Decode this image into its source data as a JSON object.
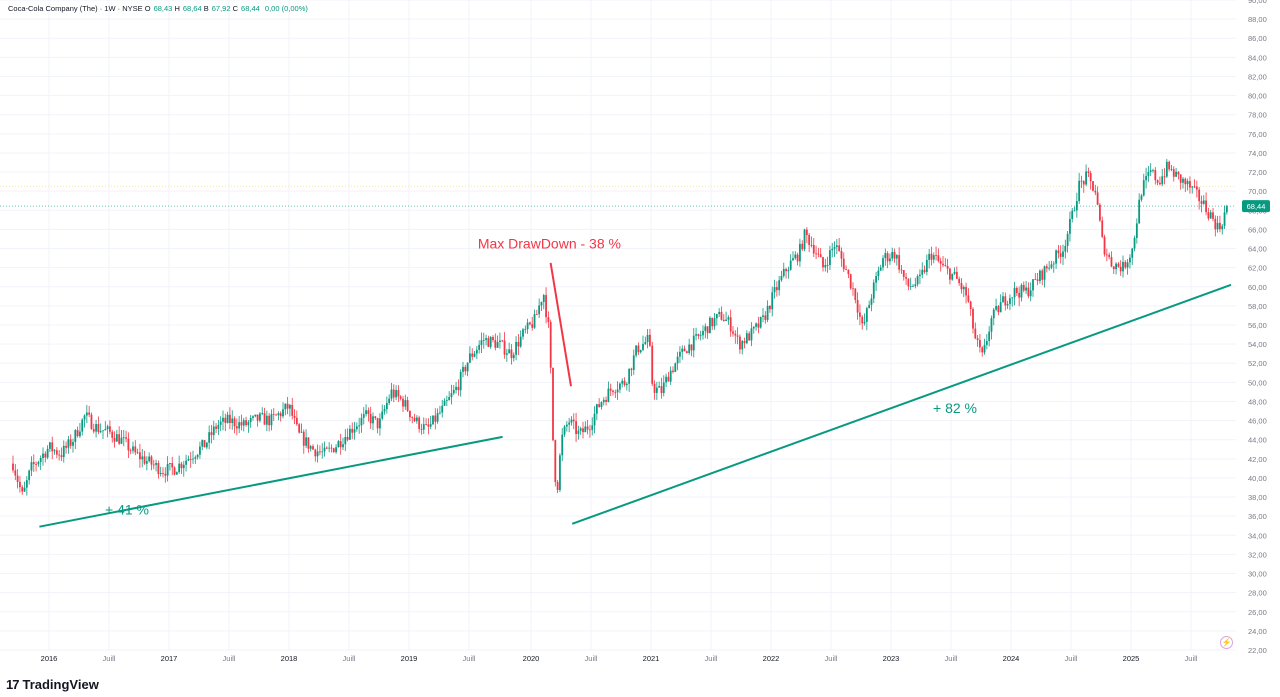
{
  "header": {
    "title": "Coca-Cola Company (The) · 1W · NYSE",
    "open_label": "O",
    "open": "68,43",
    "high_label": "H",
    "high": "68,64",
    "low_label": "B",
    "low": "67,92",
    "close_label": "C",
    "close": "68,44",
    "change": "0,00 (0,00%)"
  },
  "chart_data": {
    "type": "candlestick",
    "title": "Coca-Cola Company (The) · 1W · NYSE",
    "timeframe": "1W",
    "x_tick_labels": [
      "2016",
      "Juill",
      "2017",
      "Juill",
      "2018",
      "Juill",
      "2019",
      "Juill",
      "2020",
      "Juill",
      "2021",
      "Juill",
      "2022",
      "Juill",
      "2023",
      "Juill",
      "2024",
      "Juill",
      "2025",
      "Juill"
    ],
    "y_tick_labels": [
      "22,00",
      "24,00",
      "26,00",
      "28,00",
      "30,00",
      "32,00",
      "34,00",
      "36,00",
      "38,00",
      "40,00",
      "42,00",
      "44,00",
      "46,00",
      "48,00",
      "50,00",
      "52,00",
      "54,00",
      "56,00",
      "58,00",
      "60,00",
      "62,00",
      "64,00",
      "66,00",
      "68,00",
      "70,00",
      "72,00",
      "74,00",
      "76,00",
      "78,00",
      "80,00",
      "82,00",
      "84,00",
      "86,00",
      "88,00",
      "90,00"
    ],
    "ylim": [
      22,
      90
    ],
    "xlim": [
      2015.7,
      2025.95
    ],
    "grid": true,
    "last_price": 68.44,
    "last_price_label": "68,44",
    "price_path": [
      [
        2015.7,
        41.5
      ],
      [
        2015.78,
        38.0
      ],
      [
        2015.85,
        41.0
      ],
      [
        2016.0,
        43.2
      ],
      [
        2016.1,
        42.5
      ],
      [
        2016.2,
        44.0
      ],
      [
        2016.3,
        46.5
      ],
      [
        2016.4,
        45.2
      ],
      [
        2016.5,
        44.8
      ],
      [
        2016.6,
        44.0
      ],
      [
        2016.72,
        42.5
      ],
      [
        2016.85,
        41.5
      ],
      [
        2016.95,
        40.8
      ],
      [
        2017.05,
        41.0
      ],
      [
        2017.15,
        42.0
      ],
      [
        2017.3,
        43.5
      ],
      [
        2017.4,
        45.5
      ],
      [
        2017.5,
        46.0
      ],
      [
        2017.62,
        45.5
      ],
      [
        2017.75,
        46.2
      ],
      [
        2017.85,
        46.0
      ],
      [
        2018.0,
        47.5
      ],
      [
        2018.08,
        44.5
      ],
      [
        2018.2,
        43.0
      ],
      [
        2018.3,
        42.5
      ],
      [
        2018.4,
        43.5
      ],
      [
        2018.55,
        45.5
      ],
      [
        2018.65,
        46.5
      ],
      [
        2018.75,
        45.5
      ],
      [
        2018.85,
        49.0
      ],
      [
        2018.95,
        48.0
      ],
      [
        2019.05,
        46.0
      ],
      [
        2019.15,
        45.0
      ],
      [
        2019.3,
        47.5
      ],
      [
        2019.4,
        49.5
      ],
      [
        2019.5,
        52.5
      ],
      [
        2019.62,
        54.5
      ],
      [
        2019.75,
        54.0
      ],
      [
        2019.85,
        53.0
      ],
      [
        2019.95,
        55.0
      ],
      [
        2020.05,
        56.5
      ],
      [
        2020.12,
        59.5
      ],
      [
        2020.17,
        55.0
      ],
      [
        2020.2,
        44.0
      ],
      [
        2020.23,
        38.0
      ],
      [
        2020.27,
        44.0
      ],
      [
        2020.33,
        46.0
      ],
      [
        2020.42,
        44.5
      ],
      [
        2020.5,
        45.5
      ],
      [
        2020.6,
        48.0
      ],
      [
        2020.7,
        49.5
      ],
      [
        2020.8,
        50.0
      ],
      [
        2020.9,
        53.5
      ],
      [
        2021.0,
        54.5
      ],
      [
        2021.03,
        49.5
      ],
      [
        2021.1,
        49.0
      ],
      [
        2021.17,
        51.0
      ],
      [
        2021.3,
        53.5
      ],
      [
        2021.4,
        54.5
      ],
      [
        2021.5,
        56.0
      ],
      [
        2021.6,
        57.0
      ],
      [
        2021.68,
        56.0
      ],
      [
        2021.75,
        54.0
      ],
      [
        2021.85,
        55.0
      ],
      [
        2021.95,
        56.5
      ],
      [
        2022.05,
        59.5
      ],
      [
        2022.15,
        62.0
      ],
      [
        2022.25,
        63.5
      ],
      [
        2022.3,
        65.5
      ],
      [
        2022.38,
        64.0
      ],
      [
        2022.45,
        62.0
      ],
      [
        2022.55,
        64.5
      ],
      [
        2022.65,
        61.5
      ],
      [
        2022.72,
        59.0
      ],
      [
        2022.78,
        55.5
      ],
      [
        2022.85,
        59.0
      ],
      [
        2022.95,
        63.0
      ],
      [
        2023.05,
        63.5
      ],
      [
        2023.15,
        60.0
      ],
      [
        2023.25,
        60.5
      ],
      [
        2023.35,
        63.5
      ],
      [
        2023.45,
        62.0
      ],
      [
        2023.55,
        61.0
      ],
      [
        2023.65,
        59.0
      ],
      [
        2023.72,
        54.5
      ],
      [
        2023.78,
        52.5
      ],
      [
        2023.85,
        56.5
      ],
      [
        2023.95,
        58.5
      ],
      [
        2024.05,
        59.5
      ],
      [
        2024.15,
        59.5
      ],
      [
        2024.25,
        61.0
      ],
      [
        2024.35,
        62.5
      ],
      [
        2024.45,
        64.0
      ],
      [
        2024.52,
        67.0
      ],
      [
        2024.58,
        70.5
      ],
      [
        2024.65,
        71.5
      ],
      [
        2024.72,
        70.0
      ],
      [
        2024.78,
        64.5
      ],
      [
        2024.85,
        62.5
      ],
      [
        2024.95,
        62.0
      ],
      [
        2025.03,
        64.0
      ],
      [
        2025.1,
        70.0
      ],
      [
        2025.18,
        72.0
      ],
      [
        2025.25,
        71.0
      ],
      [
        2025.32,
        72.5
      ],
      [
        2025.4,
        71.5
      ],
      [
        2025.5,
        70.5
      ],
      [
        2025.6,
        69.0
      ],
      [
        2025.68,
        67.5
      ],
      [
        2025.75,
        66.0
      ],
      [
        2025.82,
        68.44
      ]
    ],
    "trendlines": [
      {
        "label": "+ 41 %",
        "color": "#089981",
        "from": [
          2015.92,
          34.9
        ],
        "to": [
          2019.78,
          44.3
        ],
        "label_at": [
          2016.65,
          36.2
        ]
      },
      {
        "label": "+ 82 %",
        "color": "#089981",
        "from": [
          2020.36,
          35.2
        ],
        "to": [
          2025.85,
          60.2
        ],
        "label_at": [
          2023.55,
          46.8
        ]
      },
      {
        "label": "Max DrawDown - 38 %",
        "color": "#f23645",
        "from": [
          2020.18,
          62.5
        ],
        "to": [
          2020.35,
          49.6
        ],
        "label_at": [
          2020.17,
          64.0
        ]
      }
    ]
  },
  "footer": {
    "brand": "TradingView",
    "logo_text": "17"
  },
  "colors": {
    "up": "#089981",
    "down": "#f23645",
    "grid": "#f0f3fa",
    "axis_text": "#787b86",
    "price_badge": "#089981"
  }
}
